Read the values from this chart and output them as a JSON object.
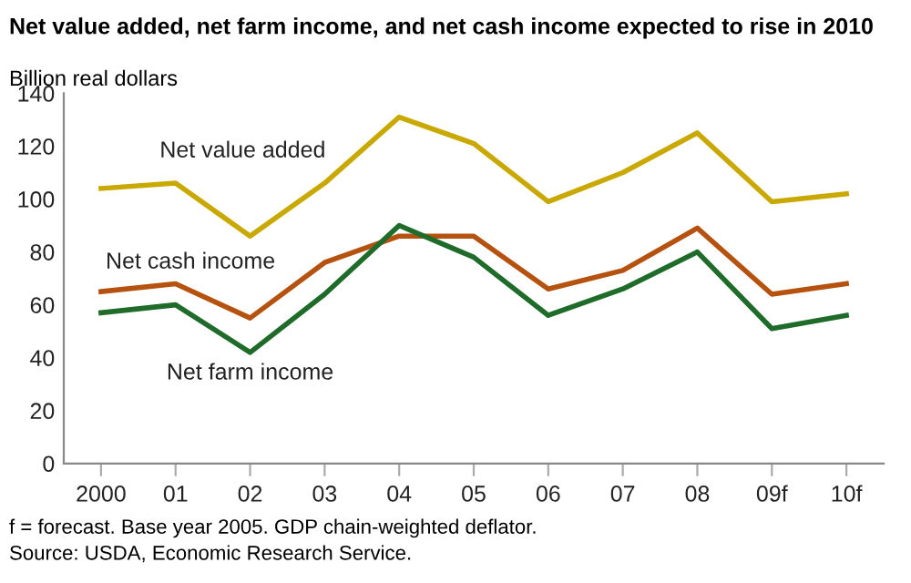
{
  "chart_data": {
    "type": "line",
    "title": "Net value added, net farm income, and net cash income expected to rise in 2010",
    "ylabel": "Billion real dollars",
    "categories": [
      "2000",
      "01",
      "02",
      "03",
      "04",
      "05",
      "06",
      "07",
      "08",
      "09f",
      "10f"
    ],
    "series": [
      {
        "name": "Net value added",
        "color": "#c9a800",
        "values": [
          104,
          106,
          86,
          106,
          131,
          121,
          99,
          110,
          125,
          99,
          102
        ]
      },
      {
        "name": "Net cash income",
        "color": "#b5520f",
        "values": [
          65,
          68,
          55,
          76,
          86,
          86,
          66,
          73,
          89,
          64,
          68
        ]
      },
      {
        "name": "Net farm income",
        "color": "#1e6b2a",
        "values": [
          57,
          60,
          42,
          64,
          90,
          78,
          56,
          66,
          80,
          51,
          56
        ]
      }
    ],
    "ylim": [
      0,
      140
    ],
    "yticks": [
      0,
      20,
      40,
      60,
      80,
      100,
      120,
      140
    ],
    "grid": false,
    "legend": false,
    "marker": "none",
    "line_style": "solid",
    "annotations": [
      "f = forecast. Base year 2005. GDP chain-weighted deflator.",
      "Source: USDA, Economic Research Service."
    ]
  }
}
